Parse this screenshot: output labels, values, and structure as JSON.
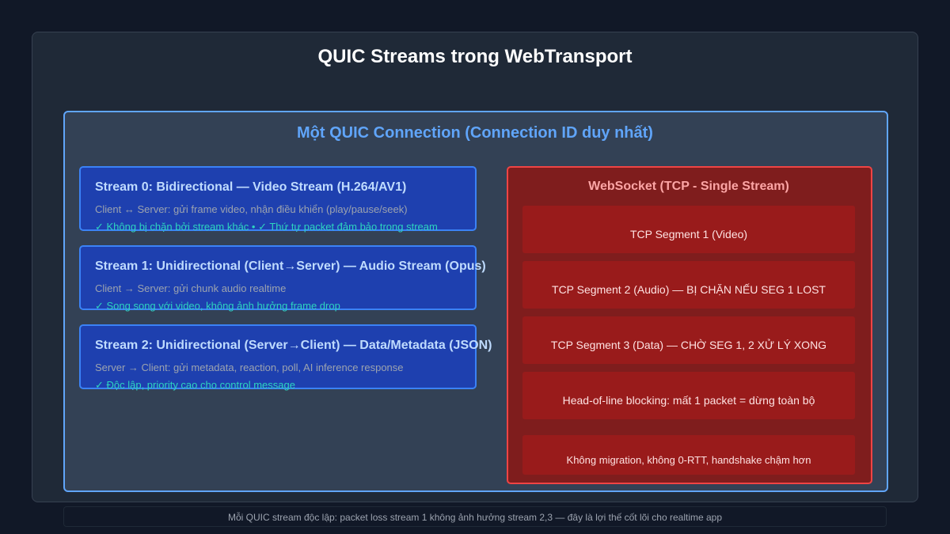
{
  "title": "QUIC Streams trong WebTransport",
  "connection": {
    "title": "Một QUIC Connection (Connection ID duy nhất)"
  },
  "streams": [
    {
      "title": "Stream 0: Bidirectional — Video Stream (H.264/AV1)",
      "description": "Client ↔ Server: gửi frame video, nhận điều khiển (play/pause/seek)",
      "note": "✓ Không bị chặn bởi stream khác • ✓ Thứ tự packet đảm bảo trong stream"
    },
    {
      "title": "Stream 1: Unidirectional (Client→Server) — Audio Stream (Opus)",
      "description": "Client → Server: gửi chunk audio realtime",
      "note": "✓ Song song với video, không ảnh hưởng frame drop"
    },
    {
      "title": "Stream 2: Unidirectional (Server→Client) — Data/Metadata (JSON)",
      "description": "Server → Client: gửi metadata, reaction, poll, AI inference response",
      "note": "✓ Độc lập, priority cao cho control message"
    }
  ],
  "websocket": {
    "title": "WebSocket (TCP - Single Stream)",
    "segments": [
      "TCP Segment 1 (Video)",
      "TCP Segment 2 (Audio) — BỊ CHẶN NẾU SEG 1 LOST",
      "TCP Segment 3 (Data) — CHỜ SEG 1, 2 XỬ LÝ XONG",
      "Head-of-line blocking: mất 1 packet = dừng toàn bộ",
      "Không migration, không 0-RTT, handshake chậm hơn"
    ]
  },
  "footer": "Mỗi QUIC stream độc lập: packet loss stream 1 không ảnh hưởng stream 2,3 — đây là lợi thế cốt lõi cho realtime app",
  "colors": {
    "background": "#111827",
    "panel": "#1f2937",
    "connection_border": "#60a5fa",
    "stream_fill": "#1e40af",
    "stream_border": "#3b82f6",
    "note_text": "#2dd4bf",
    "websocket_fill": "#7f1d1d",
    "websocket_border": "#ef4444",
    "segment_fill": "#991b1b"
  }
}
